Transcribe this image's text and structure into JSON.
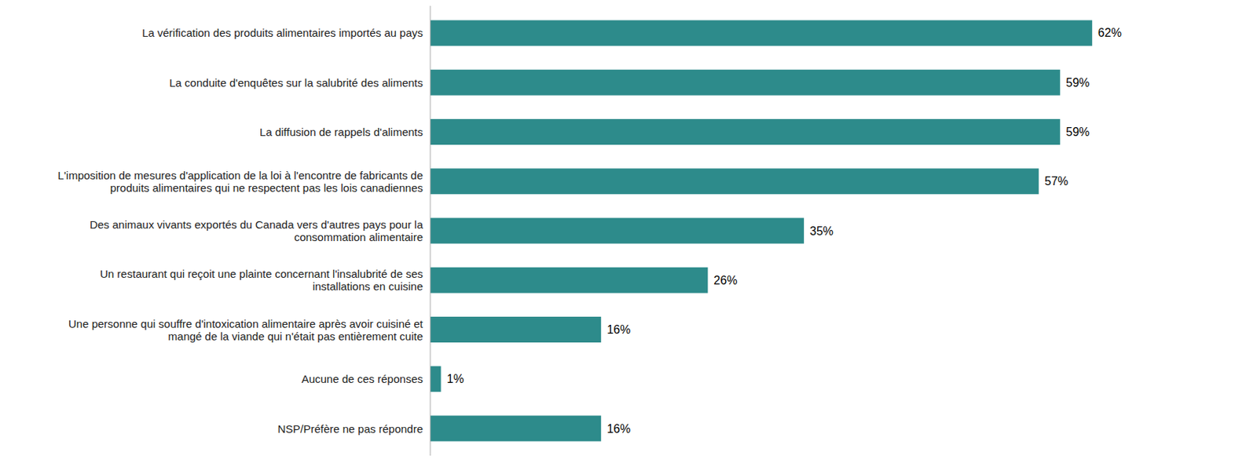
{
  "chart_data": {
    "type": "bar",
    "orientation": "horizontal",
    "categories": [
      "NSP/Préfère ne pas répondre",
      "Aucune de ces réponses",
      "Une personne qui souffre d'intoxication alimentaire après avoir cuisiné et\nmangé de la viande qui n'était pas entièrement cuite",
      "Un restaurant qui reçoit une plainte concernant l'insalubrité de ses\ninstallations en cuisine",
      "Des animaux vivants exportés du Canada vers d'autres pays pour la\nconsommation alimentaire",
      "L'imposition de mesures d'application de la loi à l'encontre de fabricants de\nproduits alimentaires qui ne respectent pas les lois canadiennes",
      "La diffusion de rappels d'aliments",
      "La conduite d'enquêtes sur la salubrité des aliments",
      "La vérification des produits alimentaires importés au pays"
    ],
    "values": [
      16,
      1,
      16,
      26,
      35,
      57,
      59,
      59,
      62
    ],
    "value_labels": [
      "16%",
      "1%",
      "16%",
      "26%",
      "35%",
      "57%",
      "59%",
      "59%",
      "62%"
    ],
    "color": "#2d8b8b",
    "xlim": [
      0,
      72
    ],
    "data_labels": true,
    "tick_labels": "y",
    "grid": false
  }
}
